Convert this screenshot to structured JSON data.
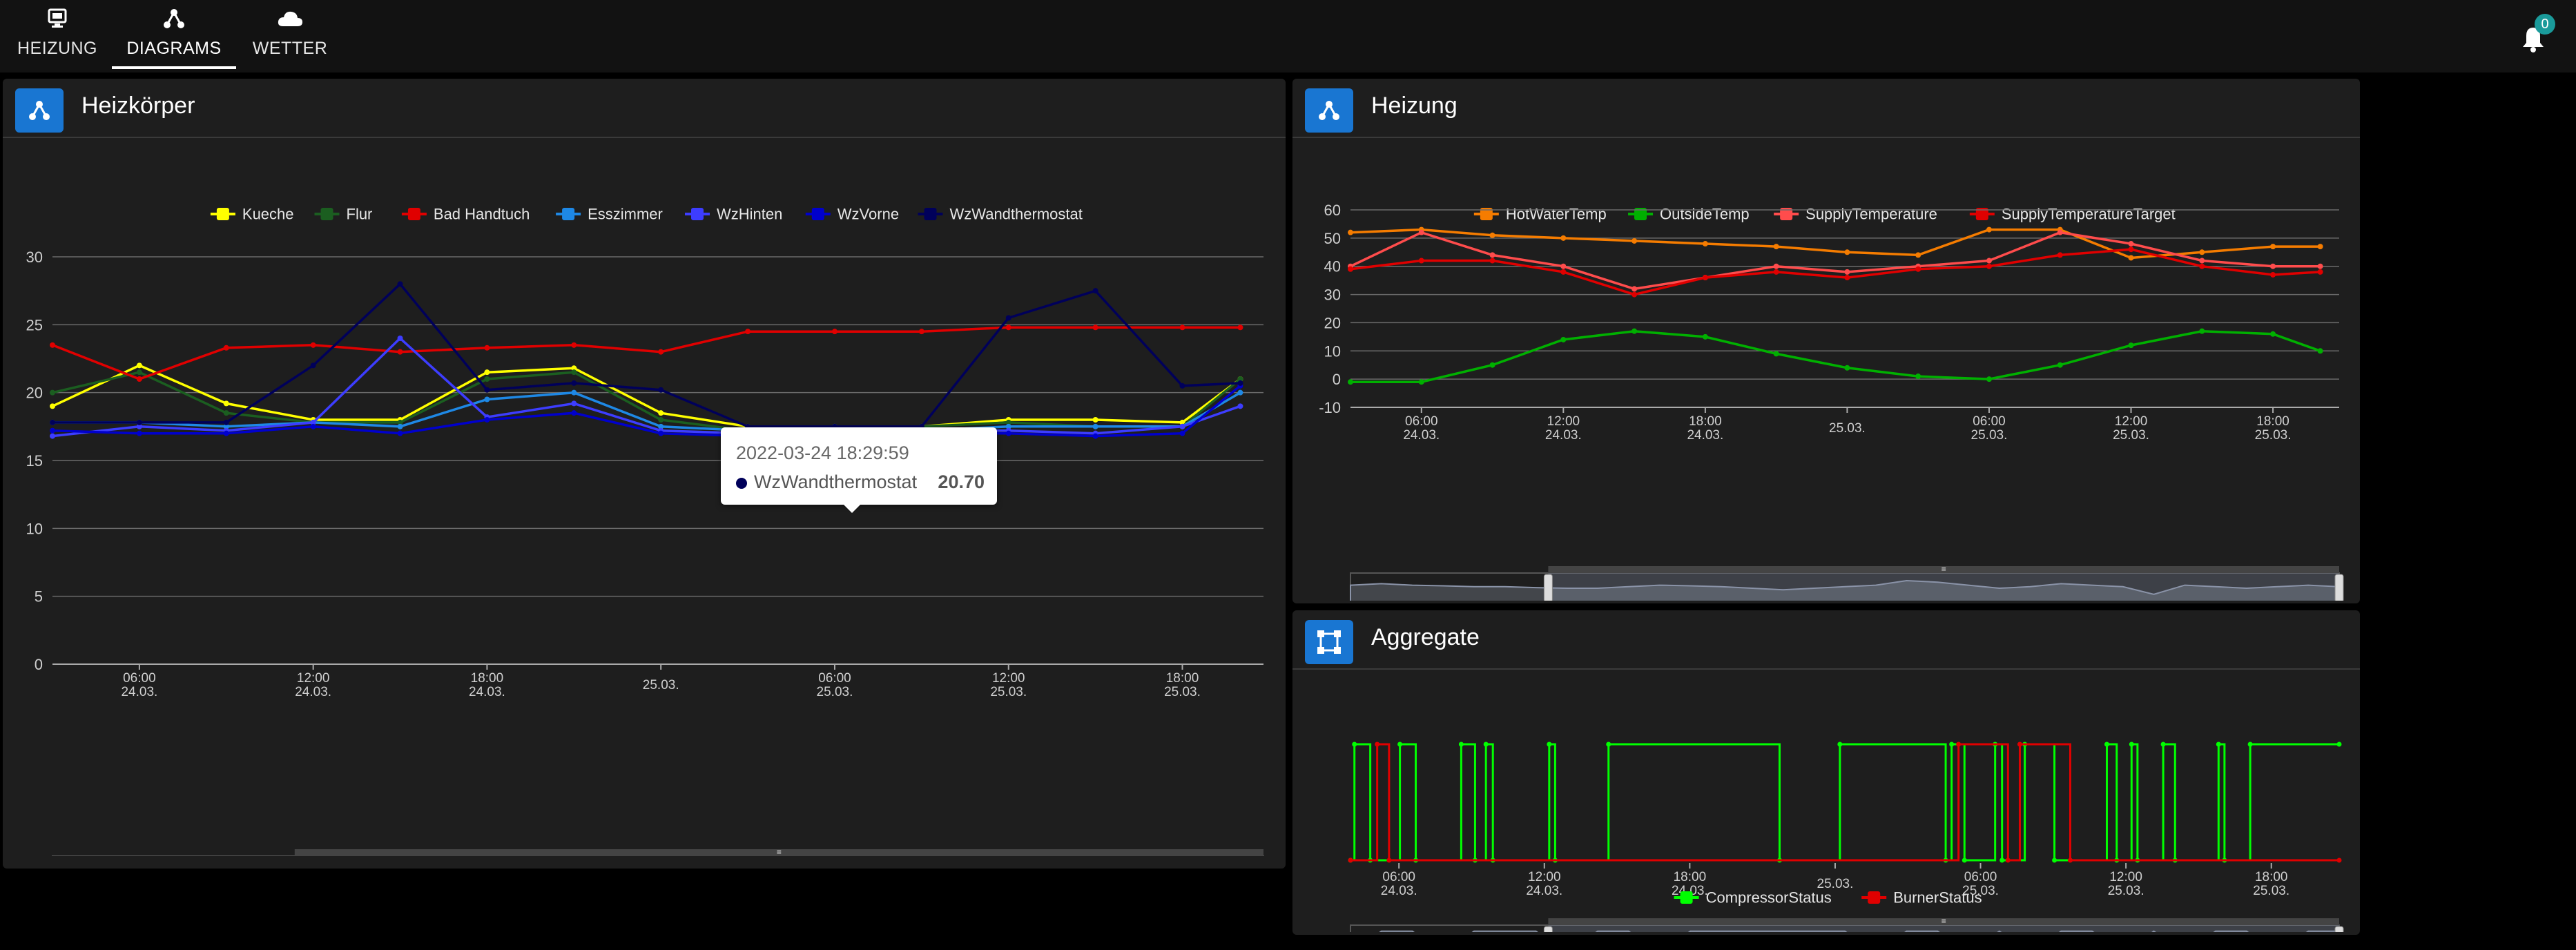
{
  "nav": {
    "tabs": [
      {
        "label": "HEIZUNG",
        "icon": "monitor-icon"
      },
      {
        "label": "DIAGRAMS",
        "icon": "hierarchy-icon"
      },
      {
        "label": "WETTER",
        "icon": "cloud-icon"
      }
    ],
    "active_tab": "DIAGRAMS",
    "notifications": {
      "count": "0"
    }
  },
  "colors": {
    "panel_icon": "#1976d2",
    "active_underline": "#ffffff",
    "badge": "#1a9a9a"
  },
  "panels": {
    "heizkoerper": {
      "title": "Heizkörper",
      "icon": "hierarchy-icon"
    },
    "heizung": {
      "title": "Heizung",
      "icon": "hierarchy-icon"
    },
    "aggregate": {
      "title": "Aggregate",
      "icon": "vector-square-icon"
    }
  },
  "tooltip": {
    "date": "2022-03-24 18:29:59",
    "series": "WzWandthermostat",
    "value": "20.70"
  },
  "chart_data": [
    {
      "type": "line",
      "title": "",
      "legend_position": "top-center",
      "grid": true,
      "ylim": [
        0,
        30
      ],
      "yticks": [
        "0",
        "5",
        "10",
        "15",
        "20",
        "25",
        "30"
      ],
      "xticks": [
        {
          "time": "06:00",
          "date": "24.03."
        },
        {
          "time": "12:00",
          "date": "24.03."
        },
        {
          "time": "18:00",
          "date": "24.03."
        },
        {
          "time": "",
          "date": "25.03."
        },
        {
          "time": "06:00",
          "date": "25.03."
        },
        {
          "time": "12:00",
          "date": "25.03."
        },
        {
          "time": "18:00",
          "date": "25.03."
        }
      ],
      "x": [
        "03:00",
        "06:00",
        "09:00",
        "12:00",
        "15:00",
        "18:00",
        "21:00",
        "00:00",
        "03:00",
        "06:00",
        "09:00",
        "12:00",
        "15:00",
        "18:00",
        "20:00"
      ],
      "series": [
        {
          "name": "Kueche",
          "color": "#ffff00",
          "values": [
            19,
            22,
            19.2,
            18,
            18,
            21.5,
            21.8,
            18.5,
            17.5,
            17.5,
            17.5,
            18,
            18,
            17.8,
            21
          ]
        },
        {
          "name": "Flur",
          "color": "#1b5e20",
          "values": [
            20,
            21.5,
            18.5,
            17.8,
            17.8,
            21,
            21.5,
            18,
            17.2,
            17.2,
            17.5,
            17.8,
            17.5,
            17.5,
            21
          ]
        },
        {
          "name": "Bad Handtuch",
          "color": "#e00000",
          "values": [
            23.5,
            21,
            23.3,
            23.5,
            23,
            23.3,
            23.5,
            23,
            24.5,
            24.5,
            24.5,
            24.8,
            24.8,
            24.8,
            24.8
          ]
        },
        {
          "name": "Esszimmer",
          "color": "#1e88e5",
          "values": [
            17.8,
            17.8,
            17.5,
            17.8,
            17.5,
            19.5,
            20,
            17.5,
            17.2,
            17.5,
            17.2,
            17.5,
            17.5,
            17.5,
            20
          ]
        },
        {
          "name": "WzHinten",
          "color": "#3d3dff",
          "values": [
            16.8,
            17.5,
            17.2,
            17.8,
            24,
            18.2,
            19.2,
            17.2,
            17,
            16.5,
            17.2,
            17.2,
            17,
            17.5,
            19
          ]
        },
        {
          "name": "WzVorne",
          "color": "#0000cc",
          "values": [
            17.2,
            17,
            17,
            17.5,
            17,
            18,
            18.5,
            17,
            16.8,
            16.8,
            17,
            17,
            16.8,
            17,
            20.5
          ]
        },
        {
          "name": "WzWandthermostat",
          "color": "#00005a",
          "values": [
            17.8,
            17.8,
            17.8,
            22,
            28,
            20.2,
            20.7,
            20.2,
            17.5,
            17.5,
            17.5,
            25.5,
            27.5,
            20.5,
            20.7
          ]
        }
      ]
    },
    {
      "type": "line",
      "title": "",
      "legend_position": "top-center",
      "grid": true,
      "ylim": [
        -10,
        60
      ],
      "yticks": [
        "-10",
        "0",
        "10",
        "20",
        "30",
        "40",
        "50",
        "60"
      ],
      "xticks": [
        {
          "time": "06:00",
          "date": "24.03."
        },
        {
          "time": "12:00",
          "date": "24.03."
        },
        {
          "time": "18:00",
          "date": "24.03."
        },
        {
          "time": "",
          "date": "25.03."
        },
        {
          "time": "06:00",
          "date": "25.03."
        },
        {
          "time": "12:00",
          "date": "25.03."
        },
        {
          "time": "18:00",
          "date": "25.03."
        }
      ],
      "x": [
        "03:00",
        "06:00",
        "09:00",
        "12:00",
        "15:00",
        "18:00",
        "21:00",
        "00:00",
        "03:00",
        "06:00",
        "09:00",
        "12:00",
        "15:00",
        "18:00",
        "20:00"
      ],
      "series": [
        {
          "name": "HotWaterTemp",
          "color": "#f57c00",
          "values": [
            52,
            53,
            51,
            50,
            49,
            48,
            47,
            45,
            44,
            53,
            53,
            43,
            45,
            47,
            47
          ]
        },
        {
          "name": "OutsideTemp",
          "color": "#00b000",
          "values": [
            -1,
            -1,
            5,
            14,
            17,
            15,
            9,
            4,
            1,
            0,
            5,
            12,
            17,
            16,
            10
          ]
        },
        {
          "name": "SupplyTemperature",
          "color": "#ff4c4c",
          "values": [
            40,
            52,
            44,
            40,
            32,
            36,
            40,
            38,
            40,
            42,
            52,
            48,
            42,
            40,
            40
          ]
        },
        {
          "name": "SupplyTemperatureTarget",
          "color": "#e00000",
          "values": [
            39,
            42,
            42,
            38,
            30,
            36,
            38,
            36,
            39,
            40,
            44,
            46,
            40,
            37,
            38
          ]
        }
      ]
    },
    {
      "type": "line",
      "title": "",
      "legend_position": "bottom-center",
      "grid": false,
      "ylim": [
        0,
        1
      ],
      "xticks": [
        {
          "time": "06:00",
          "date": "24.03."
        },
        {
          "time": "12:00",
          "date": "24.03."
        },
        {
          "time": "18:00",
          "date": "24.03."
        },
        {
          "time": "",
          "date": "25.03."
        },
        {
          "time": "06:00",
          "date": "25.03."
        },
        {
          "time": "12:00",
          "date": "25.03."
        },
        {
          "time": "18:00",
          "date": "25.03."
        }
      ],
      "series": [
        {
          "name": "CompressorStatus",
          "color": "#00ff00",
          "steps": [
            [
              0.0,
              0
            ],
            [
              0.004,
              1
            ],
            [
              0.02,
              0
            ],
            [
              0.05,
              1
            ],
            [
              0.066,
              0
            ],
            [
              0.112,
              1
            ],
            [
              0.126,
              0
            ],
            [
              0.137,
              1
            ],
            [
              0.144,
              0
            ],
            [
              0.201,
              1
            ],
            [
              0.207,
              0
            ],
            [
              0.261,
              1
            ],
            [
              0.434,
              0
            ],
            [
              0.495,
              1
            ],
            [
              0.602,
              0
            ],
            [
              0.608,
              1
            ],
            [
              0.621,
              0
            ],
            [
              0.652,
              1
            ],
            [
              0.659,
              0
            ],
            [
              0.682,
              1
            ],
            [
              0.712,
              0
            ],
            [
              0.765,
              1
            ],
            [
              0.775,
              0
            ],
            [
              0.79,
              1
            ],
            [
              0.796,
              0
            ],
            [
              0.822,
              1
            ],
            [
              0.834,
              0
            ],
            [
              0.878,
              1
            ],
            [
              0.884,
              0
            ],
            [
              0.91,
              1
            ],
            [
              1.0,
              1
            ]
          ]
        },
        {
          "name": "BurnerStatus",
          "color": "#e00000",
          "steps": [
            [
              0.0,
              0
            ],
            [
              0.027,
              1
            ],
            [
              0.039,
              0
            ],
            [
              0.615,
              1
            ],
            [
              0.665,
              0
            ],
            [
              0.677,
              1
            ],
            [
              0.728,
              0
            ],
            [
              1.0,
              0
            ]
          ]
        }
      ]
    }
  ]
}
